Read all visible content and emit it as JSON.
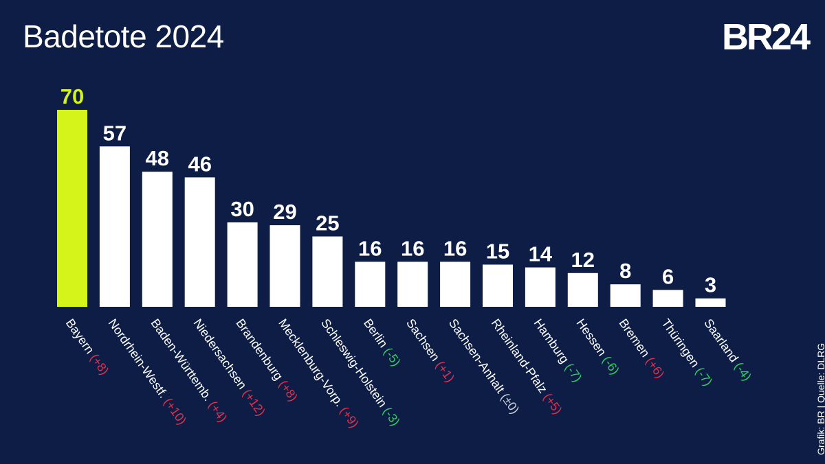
{
  "header": {
    "title": "Badetote 2024",
    "logo": "BR24",
    "credit": "Grafik: BR | Quelle: DLRG"
  },
  "colors": {
    "background": "#0d1d45",
    "highlight": "#d4f41a",
    "bar": "#ffffff",
    "increase": "#e3304d",
    "decrease": "#2fd160",
    "neutral": "#c9cfd8"
  },
  "chart_data": {
    "type": "bar",
    "title": "Badetote 2024",
    "xlabel": "",
    "ylabel": "",
    "ylim": [
      0,
      70
    ],
    "grid": false,
    "categories": [
      "Bayern",
      "Nordrhein-Westf.",
      "Baden-Württemb.",
      "Niedersachsen",
      "Brandenburg",
      "Mecklenburg-Vorp.",
      "Schleswig-Holstein",
      "Berlin",
      "Sachsen",
      "Sachsen-Anhalt",
      "Rheinland-Pfalz",
      "Hamburg",
      "Hessen",
      "Bremen",
      "Thüringen",
      "Saarland"
    ],
    "values": [
      70,
      57,
      48,
      46,
      30,
      29,
      25,
      16,
      16,
      16,
      15,
      14,
      12,
      8,
      6,
      3
    ],
    "changes": [
      "(+8)",
      "(+10)",
      "(+4)",
      "(+12)",
      "(+8)",
      "(+9)",
      "(-3)",
      "(-5)",
      "(+1)",
      "(±0)",
      "(+5)",
      "(-7)",
      "(-6)",
      "(+6)",
      "(-7)",
      "(-4)"
    ],
    "highlight_index": 0
  }
}
